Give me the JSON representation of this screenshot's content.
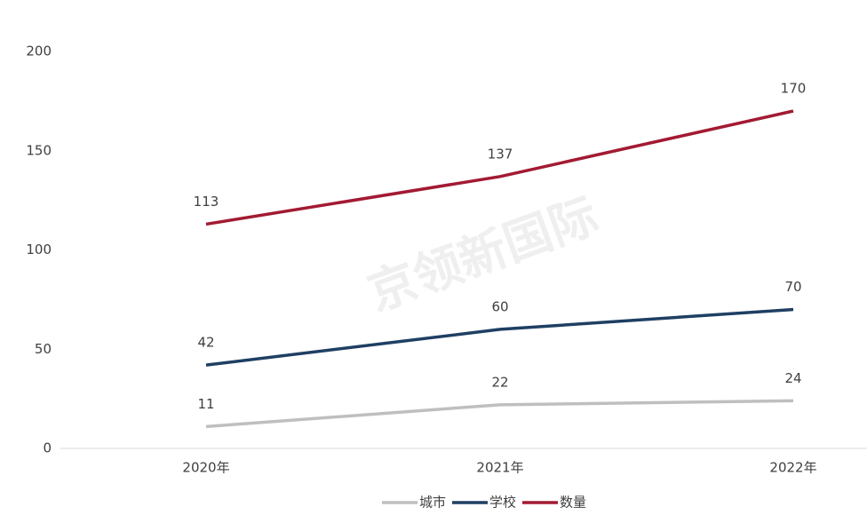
{
  "chart_data": {
    "type": "line",
    "categories": [
      "2020年",
      "2021年",
      "2022年"
    ],
    "series": [
      {
        "name": "城市",
        "color": "#bfbfbf",
        "values": [
          11,
          22,
          24
        ]
      },
      {
        "name": "学校",
        "color": "#1f3f63",
        "values": [
          42,
          60,
          70
        ]
      },
      {
        "name": "数量",
        "color": "#a31a32",
        "values": [
          113,
          137,
          170
        ]
      }
    ],
    "ylim": [
      0,
      200
    ],
    "yticks": [
      0,
      50,
      100,
      150,
      200
    ],
    "watermark": "京领新国际",
    "legend": "bottom"
  }
}
